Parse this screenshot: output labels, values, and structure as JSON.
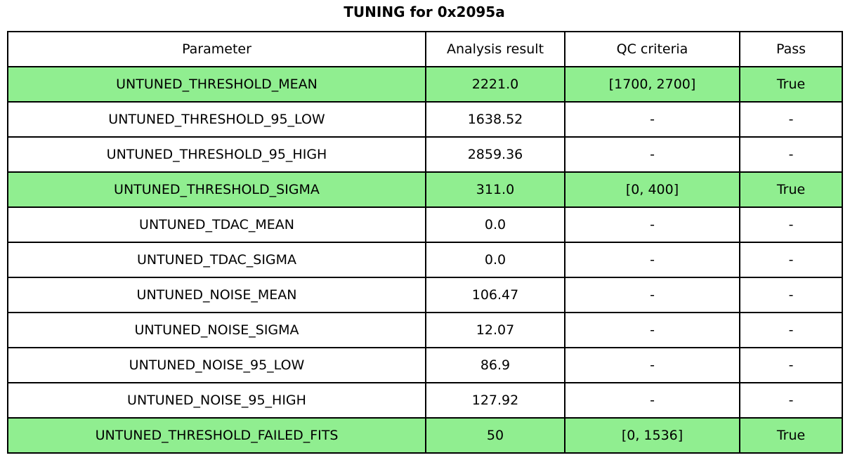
{
  "title": "TUNING for 0x2095a",
  "colors": {
    "highlight_green": "#90EE90",
    "border": "#000000",
    "background": "#ffffff",
    "text": "#000000"
  },
  "chart_data": {
    "type": "table",
    "title": "TUNING for 0x2095a",
    "columns": [
      "Parameter",
      "Analysis result",
      "QC criteria",
      "Pass"
    ],
    "rows": [
      {
        "parameter": "UNTUNED_THRESHOLD_MEAN",
        "analysis_result": "2221.0",
        "qc_criteria": "[1700, 2700]",
        "pass": "True",
        "highlighted": true
      },
      {
        "parameter": "UNTUNED_THRESHOLD_95_LOW",
        "analysis_result": "1638.52",
        "qc_criteria": "-",
        "pass": "-",
        "highlighted": false
      },
      {
        "parameter": "UNTUNED_THRESHOLD_95_HIGH",
        "analysis_result": "2859.36",
        "qc_criteria": "-",
        "pass": "-",
        "highlighted": false
      },
      {
        "parameter": "UNTUNED_THRESHOLD_SIGMA",
        "analysis_result": "311.0",
        "qc_criteria": "[0, 400]",
        "pass": "True",
        "highlighted": true
      },
      {
        "parameter": "UNTUNED_TDAC_MEAN",
        "analysis_result": "0.0",
        "qc_criteria": "-",
        "pass": "-",
        "highlighted": false
      },
      {
        "parameter": "UNTUNED_TDAC_SIGMA",
        "analysis_result": "0.0",
        "qc_criteria": "-",
        "pass": "-",
        "highlighted": false
      },
      {
        "parameter": "UNTUNED_NOISE_MEAN",
        "analysis_result": "106.47",
        "qc_criteria": "-",
        "pass": "-",
        "highlighted": false
      },
      {
        "parameter": "UNTUNED_NOISE_SIGMA",
        "analysis_result": "12.07",
        "qc_criteria": "-",
        "pass": "-",
        "highlighted": false
      },
      {
        "parameter": "UNTUNED_NOISE_95_LOW",
        "analysis_result": "86.9",
        "qc_criteria": "-",
        "pass": "-",
        "highlighted": false
      },
      {
        "parameter": "UNTUNED_NOISE_95_HIGH",
        "analysis_result": "127.92",
        "qc_criteria": "-",
        "pass": "-",
        "highlighted": false
      },
      {
        "parameter": "UNTUNED_THRESHOLD_FAILED_FITS",
        "analysis_result": "50",
        "qc_criteria": "[0, 1536]",
        "pass": "True",
        "highlighted": true
      }
    ]
  }
}
